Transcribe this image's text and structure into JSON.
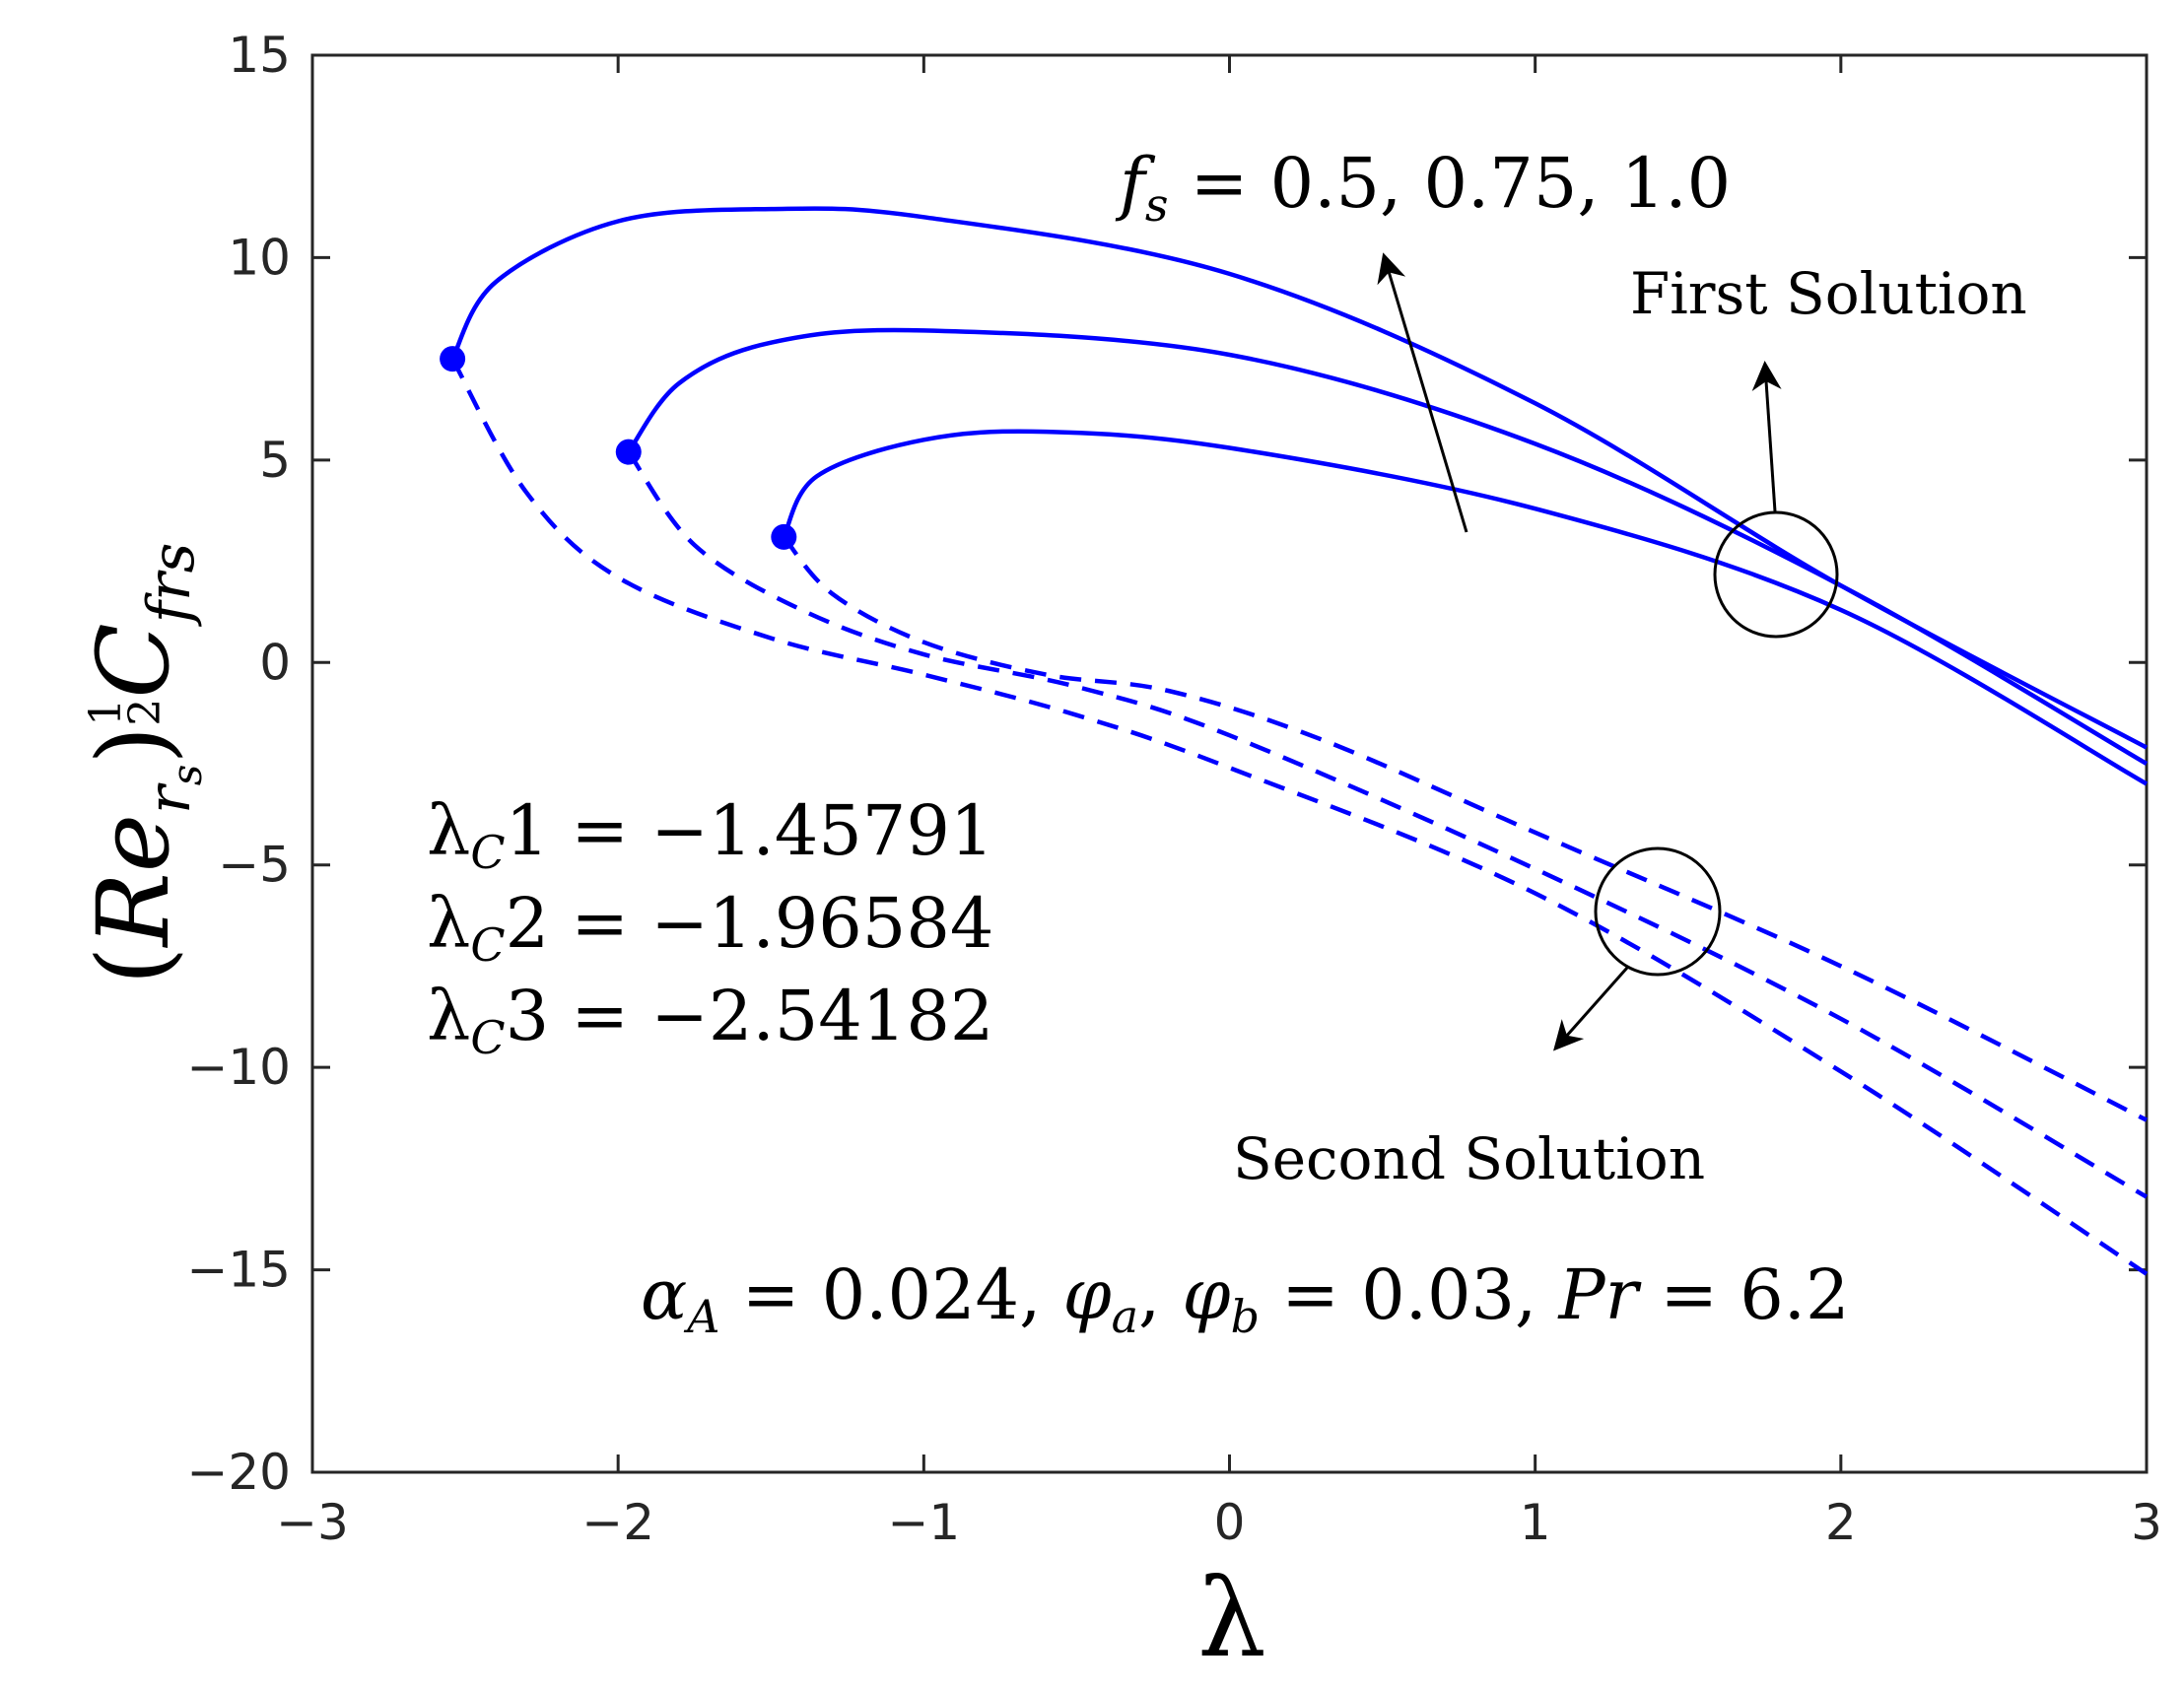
{
  "chart_data": {
    "type": "line",
    "xlabel": "λ",
    "ylabel": {
      "open": "(",
      "Re": "Re",
      "r_sub": "r",
      "s_subsub": "s",
      "close": ")",
      "exp_num": "1",
      "exp_den": "2",
      "C": "C",
      "fr_sub": "fr",
      "s_sub": "s"
    },
    "xlim": [
      -3,
      3
    ],
    "ylim": [
      -20,
      15
    ],
    "xticks": [
      -3,
      -2,
      -1,
      0,
      1,
      2,
      3
    ],
    "yticks": [
      -20,
      -15,
      -10,
      -5,
      0,
      5,
      10,
      15
    ],
    "xtick_labels": [
      "−3",
      "−2",
      "−1",
      "0",
      "1",
      "2",
      "3"
    ],
    "ytick_labels": [
      "−20",
      "−15",
      "−10",
      "−5",
      "0",
      "5",
      "10",
      "15"
    ],
    "colors": {
      "series": "#0000ff",
      "axis": "#262626",
      "annotation": "#000000"
    },
    "series": [
      {
        "name": "f_s = 0.5",
        "critical_point": {
          "lambda": -1.45791,
          "value": 3.1
        },
        "first_solution": [
          [
            -1.45791,
            3.1
          ],
          [
            -1.35,
            4.6
          ],
          [
            -1.0,
            5.5
          ],
          [
            -0.6,
            5.7
          ],
          [
            0.0,
            5.3
          ],
          [
            1.0,
            3.8
          ],
          [
            2.0,
            1.3
          ],
          [
            3.0,
            -3.0
          ]
        ],
        "second_solution": [
          [
            -1.45791,
            3.1
          ],
          [
            -1.3,
            1.7
          ],
          [
            -1.0,
            0.5
          ],
          [
            -0.6,
            -0.3
          ],
          [
            -0.2,
            -0.7
          ],
          [
            0.3,
            -1.9
          ],
          [
            1.0,
            -4.2
          ],
          [
            2.0,
            -7.5
          ],
          [
            3.0,
            -11.3
          ]
        ]
      },
      {
        "name": "f_s = 0.75",
        "critical_point": {
          "lambda": -1.96584,
          "value": 5.2
        },
        "first_solution": [
          [
            -1.96584,
            5.2
          ],
          [
            -1.8,
            6.9
          ],
          [
            -1.5,
            7.9
          ],
          [
            -1.0,
            8.2
          ],
          [
            0.0,
            7.6
          ],
          [
            1.0,
            5.4
          ],
          [
            2.0,
            1.9
          ],
          [
            3.0,
            -2.5
          ]
        ],
        "second_solution": [
          [
            -1.96584,
            5.2
          ],
          [
            -1.75,
            2.9
          ],
          [
            -1.4,
            1.3
          ],
          [
            -1.0,
            0.2
          ],
          [
            -0.5,
            -0.6
          ],
          [
            0.0,
            -1.8
          ],
          [
            1.0,
            -5.1
          ],
          [
            2.0,
            -8.8
          ],
          [
            3.0,
            -13.2
          ]
        ]
      },
      {
        "name": "f_s = 1.0",
        "critical_point": {
          "lambda": -2.54182,
          "value": 7.5
        },
        "first_solution": [
          [
            -2.54182,
            7.5
          ],
          [
            -2.4,
            9.4
          ],
          [
            -2.0,
            10.9
          ],
          [
            -1.5,
            11.2
          ],
          [
            -1.0,
            11.0
          ],
          [
            0.0,
            9.6
          ],
          [
            1.0,
            6.4
          ],
          [
            2.0,
            1.9
          ],
          [
            3.0,
            -2.1
          ]
        ],
        "second_solution": [
          [
            -2.54182,
            7.5
          ],
          [
            -2.3,
            4.2
          ],
          [
            -2.0,
            2.1
          ],
          [
            -1.5,
            0.6
          ],
          [
            -1.0,
            -0.3
          ],
          [
            -0.5,
            -1.3
          ],
          [
            0.0,
            -2.6
          ],
          [
            1.0,
            -5.7
          ],
          [
            2.0,
            -10.1
          ],
          [
            3.0,
            -15.1
          ]
        ]
      }
    ],
    "annotations": {
      "fs_text": {
        "lhs": "f",
        "sub": "s",
        "rhs": " = 0.5, 0.75, 1.0"
      },
      "first_solution": "First Solution",
      "second_solution": "Second Solution",
      "critical_values": [
        {
          "lhs": "λ",
          "sub": "C",
          "rhs": "1 = −1.45791"
        },
        {
          "lhs": "λ",
          "sub": "C",
          "rhs": "2 = −1.96584"
        },
        {
          "lhs": "λ",
          "sub": "C",
          "rhs": "3 = −2.54182"
        }
      ],
      "params": {
        "alpha": "α",
        "alpha_sub": "A",
        "alpha_val": " = 0.024, ",
        "phi": "φ",
        "phi_a_sub": "a",
        "comma": ", ",
        "phi_b_sub": "b",
        "phi_val": " = 0.03, ",
        "Pr": "Pr",
        "Pr_val": " = 6.2"
      }
    }
  }
}
